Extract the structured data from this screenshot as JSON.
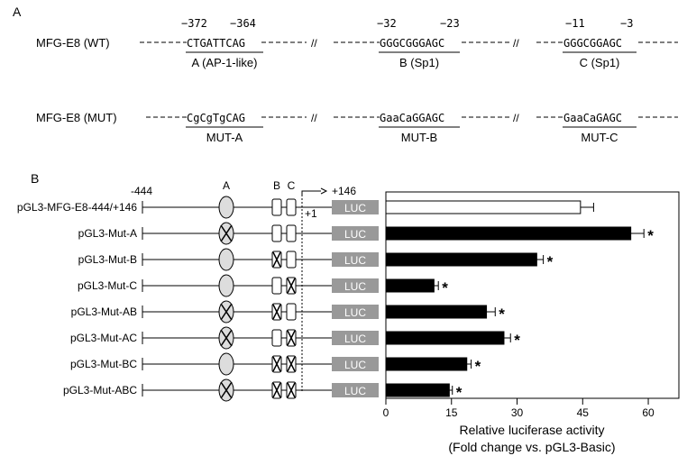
{
  "panel_a": {
    "label": "A",
    "wt": {
      "name": "MFG-E8 (WT)",
      "sites": [
        {
          "seq": "CTGATTCAG",
          "left_pos": "−372",
          "right_pos": "−364",
          "caption": "A (AP-1-like)"
        },
        {
          "seq": "GGGCGGGAGC",
          "left_pos": "−32",
          "right_pos": "−23",
          "caption": "B (Sp1)"
        },
        {
          "seq": "GGGCGGAGC",
          "left_pos": "−11",
          "right_pos": "−3",
          "caption": "C (Sp1)"
        }
      ]
    },
    "mut": {
      "name": "MFG-E8 (MUT)",
      "sites": [
        {
          "seq": "CgCgTgCAG",
          "caption": "MUT-A"
        },
        {
          "seq": "GaaCaGGAGC",
          "caption": "MUT-B"
        },
        {
          "seq": "GaaCaGAGC",
          "caption": "MUT-C"
        }
      ]
    },
    "break_mark": "//"
  },
  "panel_b": {
    "label": "B",
    "pos_left": "-444",
    "pos_right": "+146",
    "tss": "+1",
    "site_labels": [
      "A",
      "B",
      "C"
    ],
    "luc_label": "LUC",
    "constructs": [
      {
        "name": "pGL3-MFG-E8-444/+146",
        "mut": [
          false,
          false,
          false
        ]
      },
      {
        "name": "pGL3-Mut-A",
        "mut": [
          true,
          false,
          false
        ]
      },
      {
        "name": "pGL3-Mut-B",
        "mut": [
          false,
          true,
          false
        ]
      },
      {
        "name": "pGL3-Mut-C",
        "mut": [
          false,
          false,
          true
        ]
      },
      {
        "name": "pGL3-Mut-AB",
        "mut": [
          true,
          true,
          false
        ]
      },
      {
        "name": "pGL3-Mut-AC",
        "mut": [
          true,
          false,
          true
        ]
      },
      {
        "name": "pGL3-Mut-BC",
        "mut": [
          false,
          true,
          true
        ]
      },
      {
        "name": "pGL3-Mut-ABC",
        "mut": [
          true,
          true,
          true
        ]
      }
    ],
    "colors": {
      "open_bar": "#ffffff",
      "filled_bar": "#000000",
      "luc_box": "#999999",
      "ellipse": "#dddddd"
    }
  },
  "chart_data": {
    "type": "bar",
    "orientation": "horizontal",
    "categories": [
      "pGL3-MFG-E8-444/+146",
      "pGL3-Mut-A",
      "pGL3-Mut-B",
      "pGL3-Mut-C",
      "pGL3-Mut-AB",
      "pGL3-Mut-AC",
      "pGL3-Mut-BC",
      "pGL3-Mut-ABC"
    ],
    "values": [
      44.5,
      56,
      34.5,
      11,
      23,
      27,
      18.5,
      14.5
    ],
    "errors": [
      3,
      3,
      1.5,
      1,
      2,
      1.5,
      1,
      0.7
    ],
    "significant": [
      false,
      true,
      true,
      true,
      true,
      true,
      true,
      true
    ],
    "significance_mark": "*",
    "xlabel_line1": "Relative luciferase activity",
    "xlabel_line2": "(Fold change vs. pGL3-Basic)",
    "xticks": [
      0,
      15,
      30,
      45,
      60
    ],
    "xlim": [
      0,
      67
    ],
    "grid": false
  }
}
